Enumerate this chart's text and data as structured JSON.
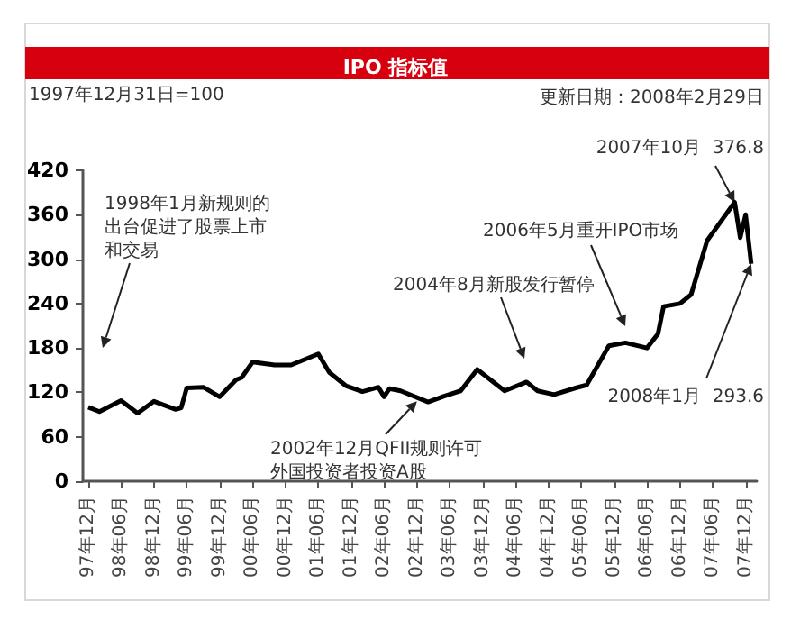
{
  "chart_data": {
    "type": "line",
    "title": "IPO 指标值",
    "subtitle": "1997年12月31日=100",
    "annotations": [
      "更新日期：2008年2月29日",
      "1998年1月新规则的出台促进了股票上市和交易",
      {
        "text": "2002年12月QFII规则许可外国投资者投资A股",
        "x": "2002-12",
        "y": 108
      },
      "2004年8月新股发行暂停",
      "2006年5月重开IPO市场",
      {
        "text": "2007年10月  376.8",
        "x": "2007-10",
        "y": 376.8
      },
      {
        "text": "2008年1月  293.6",
        "x": "2008-01",
        "y": 293.6
      }
    ],
    "x": [
      "1997-12",
      "1998-02",
      "1998-06",
      "1998-09",
      "1998-12",
      "1999-04",
      "1999-05",
      "1999-06",
      "1999-09",
      "1999-12",
      "2000-03",
      "2000-04",
      "2000-06",
      "2000-10",
      "2001-01",
      "2001-06",
      "2001-08",
      "2001-11",
      "2002-02",
      "2002-05",
      "2002-06",
      "2002-07",
      "2002-09",
      "2003-02",
      "2003-05",
      "2003-08",
      "2003-11",
      "2004-04",
      "2004-08",
      "2004-10",
      "2005-01",
      "2005-05",
      "2005-07",
      "2005-11",
      "2006-02",
      "2006-06",
      "2006-08",
      "2006-09",
      "2006-12",
      "2007-02",
      "2007-05",
      "2007-10",
      "2007-11",
      "2007-12",
      "2008-01"
    ],
    "series": [
      {
        "color": "#000000",
        "values": [
          100,
          94,
          109,
          92,
          108,
          97,
          99,
          126,
          127,
          114,
          137,
          140,
          161,
          157,
          157,
          172,
          147,
          129,
          121,
          127,
          114,
          125,
          122,
          107,
          115,
          122,
          151,
          122,
          134,
          122,
          117,
          126,
          130,
          183,
          187,
          180,
          199,
          236,
          240,
          252,
          325,
          376.8,
          329,
          360,
          293.6
        ]
      }
    ],
    "xlim": [
      "1997-11",
      "2008-02"
    ],
    "xticks": [
      {
        "value": "1997-12",
        "label": "97年12月"
      },
      {
        "value": "1998-06",
        "label": "98年06月"
      },
      {
        "value": "1998-12",
        "label": "98年12月"
      },
      {
        "value": "1999-06",
        "label": "99年06月"
      },
      {
        "value": "1999-12",
        "label": "99年12月"
      },
      {
        "value": "2000-06",
        "label": "00年06月"
      },
      {
        "value": "2000-12",
        "label": "00年12月"
      },
      {
        "value": "2001-06",
        "label": "01年06月"
      },
      {
        "value": "2001-12",
        "label": "01年12月"
      },
      {
        "value": "2002-06",
        "label": "02年06月"
      },
      {
        "value": "2002-12",
        "label": "02年12月"
      },
      {
        "value": "2003-06",
        "label": "03年06月"
      },
      {
        "value": "2003-12",
        "label": "03年12月"
      },
      {
        "value": "2004-06",
        "label": "04年06月"
      },
      {
        "value": "2004-12",
        "label": "04年12月"
      },
      {
        "value": "2005-06",
        "label": "05年06月"
      },
      {
        "value": "2005-12",
        "label": "05年12月"
      },
      {
        "value": "2006-06",
        "label": "06年06月"
      },
      {
        "value": "2006-12",
        "label": "06年12月"
      },
      {
        "value": "2007-06",
        "label": "07年06月"
      },
      {
        "value": "2007-12",
        "label": "07年12月"
      }
    ],
    "ylim": [
      0,
      420
    ],
    "yticks": [
      0,
      60,
      120,
      180,
      240,
      300,
      360,
      420
    ],
    "grid": false,
    "marker": "none",
    "line_style": "solid"
  }
}
